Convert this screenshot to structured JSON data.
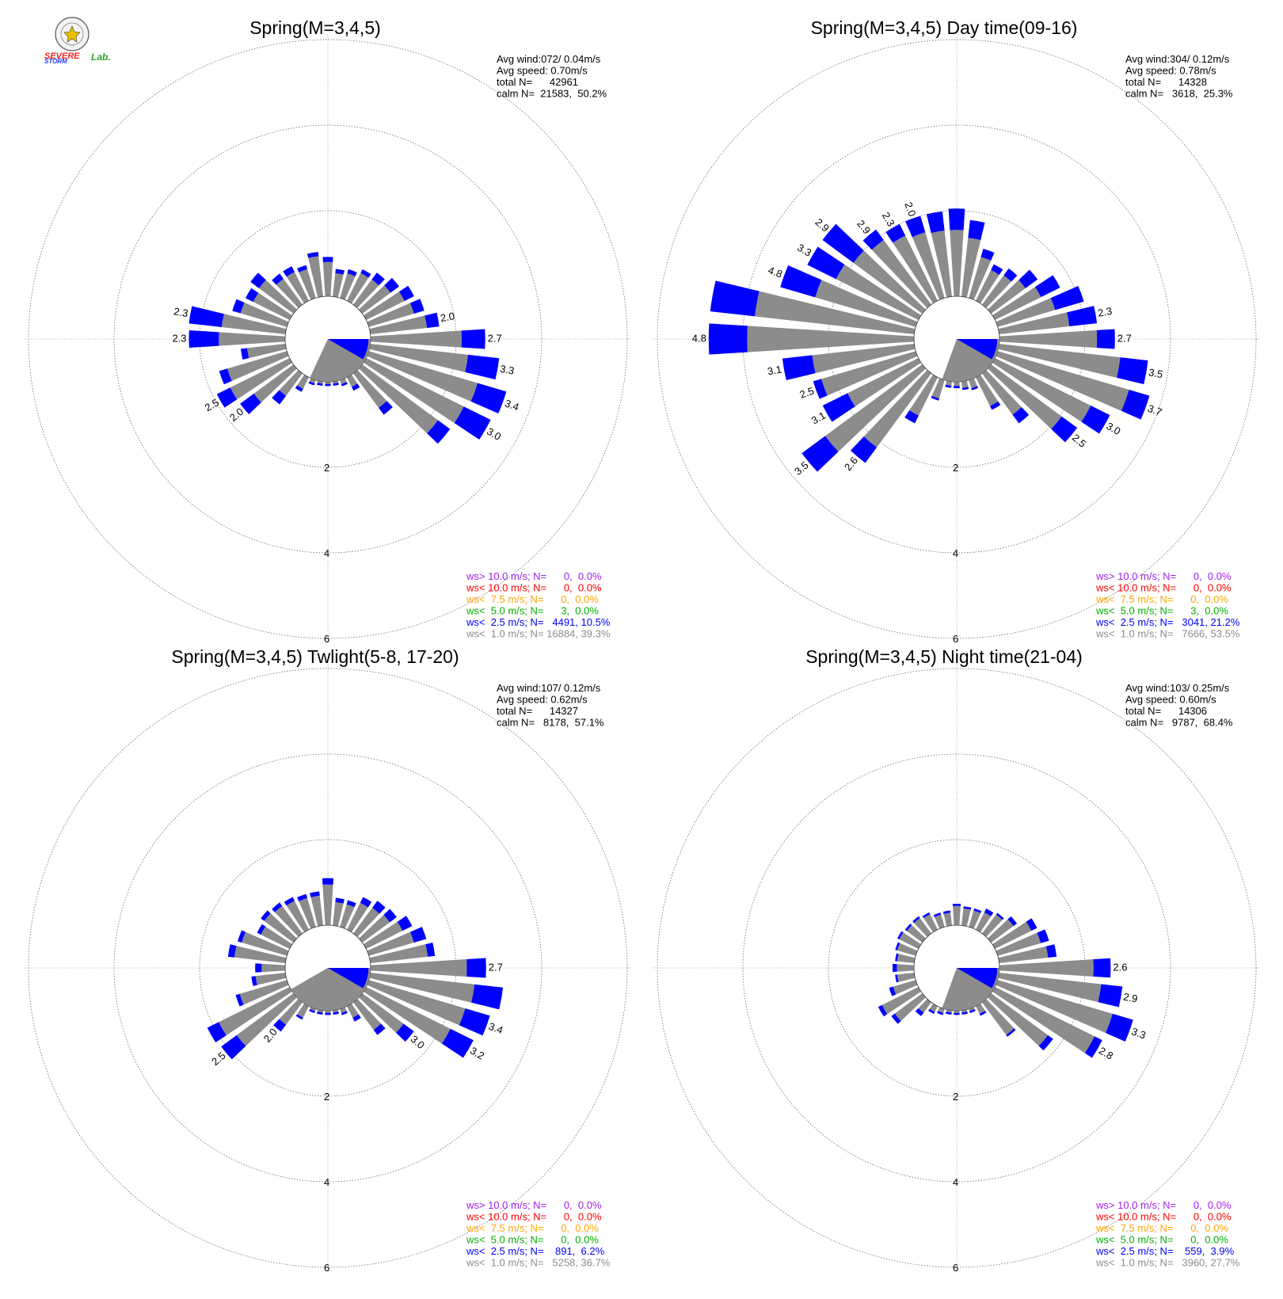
{
  "logo": {
    "line1": "SEVERE",
    "line2": "STORM",
    "line3": "Lab."
  },
  "chart_data": [
    {
      "type": "windrose",
      "title": "Spring(M=3,4,5)",
      "stats": {
        "avg_wind": "Avg wind:072/ 0.04m/s",
        "avg_speed": "Avg speed: 0.70m/s",
        "total": "total N=      42961",
        "calm": "calm N=  21583,  50.2%"
      },
      "legend": [
        {
          "text": "ws> 10.0 m/s; N=      0,  0.0%",
          "color": "#a020f0"
        },
        {
          "text": "ws< 10.0 m/s; N=      0,  0.0%",
          "color": "#ff0000"
        },
        {
          "text": "ws<  7.5 m/s; N=      0,  0.0%",
          "color": "#ffa500"
        },
        {
          "text": "ws<  5.0 m/s; N=      3,  0.0%",
          "color": "#00b000"
        },
        {
          "text": "ws<  2.5 m/s; N=   4491, 10.5%",
          "color": "#0000ff"
        },
        {
          "text": "ws<  1.0 m/s; N= 16884, 39.3%",
          "color": "#8c8c8c"
        }
      ],
      "radial_ticks": [
        "2",
        "4",
        "6"
      ],
      "calm_sector_deg": [
        90,
        205
      ],
      "directions_deg": [
        0,
        10,
        20,
        30,
        40,
        50,
        60,
        70,
        80,
        90,
        100,
        110,
        120,
        130,
        140,
        150,
        160,
        170,
        180,
        190,
        200,
        210,
        220,
        230,
        240,
        250,
        260,
        270,
        280,
        290,
        300,
        310,
        320,
        330,
        340,
        350
      ],
      "freq_ws_lt_1_0": [
        0.8,
        0.55,
        0.6,
        0.72,
        0.73,
        0.82,
        1.0,
        1.1,
        1.33,
        2.13,
        2.3,
        2.65,
        2.55,
        2.2,
        1.0,
        0.25,
        0.1,
        0.05,
        0.05,
        0.05,
        0.08,
        0.3,
        0.65,
        1.15,
        1.55,
        1.45,
        0.9,
        1.55,
        1.5,
        1.13,
        0.95,
        1.0,
        0.75,
        0.75,
        0.7,
        0.95
      ],
      "freq_ws_lt_2_5": [
        0.12,
        0.1,
        0.1,
        0.1,
        0.2,
        0.25,
        0.25,
        0.25,
        0.29,
        0.55,
        0.73,
        0.7,
        0.7,
        0.35,
        0.2,
        0.1,
        0.05,
        0.05,
        0.05,
        0.05,
        0.05,
        0.08,
        0.25,
        0.4,
        0.35,
        0.2,
        0.15,
        0.7,
        0.77,
        0.2,
        0.2,
        0.25,
        0.15,
        0.15,
        0.1,
        0.1
      ],
      "bar_labels": [
        {
          "dir": 80,
          "text": "2.0"
        },
        {
          "dir": 90,
          "text": "2.7"
        },
        {
          "dir": 100,
          "text": "3.3"
        },
        {
          "dir": 110,
          "text": "3.4"
        },
        {
          "dir": 120,
          "text": "3.0"
        },
        {
          "dir": 230,
          "text": "2.0"
        },
        {
          "dir": 240,
          "text": "2.5"
        },
        {
          "dir": 270,
          "text": "2.3"
        },
        {
          "dir": 280,
          "text": "2.3"
        }
      ]
    },
    {
      "type": "windrose",
      "title": "Spring(M=3,4,5) Day time(09-16)",
      "stats": {
        "avg_wind": "Avg wind:304/ 0.12m/s",
        "avg_speed": "Avg speed: 0.78m/s",
        "total": "total N=      14328",
        "calm": "calm N=   3618,  25.3%"
      },
      "legend": [
        {
          "text": "ws> 10.0 m/s; N=      0,  0.0%",
          "color": "#a020f0"
        },
        {
          "text": "ws< 10.0 m/s; N=      0,  0.0%",
          "color": "#ff0000"
        },
        {
          "text": "ws<  7.5 m/s; N=      0,  0.0%",
          "color": "#ffa500"
        },
        {
          "text": "ws<  5.0 m/s; N=      3,  0.0%",
          "color": "#00b000"
        },
        {
          "text": "ws<  2.5 m/s; N=   3041, 21.2%",
          "color": "#0000ff"
        },
        {
          "text": "ws<  1.0 m/s; N=   7666, 53.5%",
          "color": "#8c8c8c"
        }
      ],
      "radial_ticks": [
        "2",
        "4",
        "6"
      ],
      "calm_sector_deg": [
        90,
        200
      ],
      "directions_deg": [
        0,
        10,
        20,
        30,
        40,
        50,
        60,
        70,
        80,
        90,
        100,
        110,
        120,
        130,
        140,
        150,
        160,
        170,
        180,
        190,
        200,
        210,
        220,
        230,
        240,
        250,
        260,
        270,
        280,
        290,
        300,
        310,
        320,
        330,
        340,
        350
      ],
      "freq_ws_lt_1_0": [
        1.55,
        1.38,
        1.0,
        0.8,
        0.85,
        1.0,
        1.2,
        1.4,
        1.65,
        2.28,
        2.85,
        3.2,
        2.5,
        2.05,
        1.2,
        0.75,
        0.2,
        0.15,
        0.1,
        0.1,
        0.45,
        1.0,
        2.15,
        2.82,
        1.85,
        2.3,
        2.4,
        3.9,
        3.75,
        2.45,
        2.15,
        2.0,
        1.88,
        1.7,
        1.6,
        1.55
      ],
      "freq_ws_lt_2_5": [
        0.5,
        0.42,
        0.2,
        0.15,
        0.2,
        0.35,
        0.5,
        0.7,
        0.65,
        0.42,
        0.65,
        0.5,
        0.5,
        0.45,
        0.25,
        0.1,
        0.05,
        0.05,
        0.05,
        0.05,
        0.05,
        0.2,
        0.45,
        0.68,
        0.65,
        0.2,
        0.7,
        0.9,
        1.05,
        0.85,
        0.75,
        0.9,
        0.3,
        0.3,
        0.4,
        0.45
      ],
      "bar_labels": [
        {
          "dir": 80,
          "text": "2.3"
        },
        {
          "dir": 90,
          "text": "2.7"
        },
        {
          "dir": 100,
          "text": "3.5"
        },
        {
          "dir": 110,
          "text": "3.7"
        },
        {
          "dir": 120,
          "text": "3.0"
        },
        {
          "dir": 130,
          "text": "2.5"
        },
        {
          "dir": 220,
          "text": "2.6"
        },
        {
          "dir": 230,
          "text": "3.5"
        },
        {
          "dir": 240,
          "text": "3.1"
        },
        {
          "dir": 250,
          "text": "2.5"
        },
        {
          "dir": 260,
          "text": "3.1"
        },
        {
          "dir": 270,
          "text": "4.8"
        },
        {
          "dir": 290,
          "text": "4.8"
        },
        {
          "dir": 300,
          "text": "3.3"
        },
        {
          "dir": 310,
          "text": "2.9"
        },
        {
          "dir": 320,
          "text": "2.9"
        },
        {
          "dir": 330,
          "text": "2.3"
        },
        {
          "dir": 340,
          "text": "2.0"
        }
      ]
    },
    {
      "type": "windrose",
      "title": "Spring(M=3,4,5) Twlight(5-8, 17-20)",
      "stats": {
        "avg_wind": "Avg wind:107/ 0.12m/s",
        "avg_speed": "Avg speed: 0.62m/s",
        "total": "total N=      14327",
        "calm": "calm N=   8178,  57.1%"
      },
      "legend": [
        {
          "text": "ws> 10.0 m/s; N=      0,  0.0%",
          "color": "#a020f0"
        },
        {
          "text": "ws< 10.0 m/s; N=      0,  0.0%",
          "color": "#ff0000"
        },
        {
          "text": "ws<  7.5 m/s; N=      0,  0.0%",
          "color": "#ffa500"
        },
        {
          "text": "ws<  5.0 m/s; N=      0,  0.0%",
          "color": "#00b000"
        },
        {
          "text": "ws<  2.5 m/s; N=    891,  6.2%",
          "color": "#0000ff"
        },
        {
          "text": "ws<  1.0 m/s; N=   5258, 36.7%",
          "color": "#8c8c8c"
        }
      ],
      "radial_ticks": [
        "2",
        "4",
        "6"
      ],
      "calm_sector_deg": [
        90,
        240
      ],
      "directions_deg": [
        0,
        10,
        20,
        30,
        40,
        50,
        60,
        70,
        80,
        90,
        100,
        110,
        120,
        130,
        140,
        150,
        160,
        170,
        180,
        190,
        200,
        210,
        220,
        230,
        240,
        250,
        260,
        270,
        280,
        290,
        300,
        310,
        320,
        330,
        340,
        350
      ],
      "freq_ws_lt_1_0": [
        0.95,
        0.55,
        0.55,
        0.7,
        0.75,
        0.8,
        0.95,
        1.1,
        1.35,
        2.25,
        2.45,
        2.35,
        2.2,
        1.2,
        0.8,
        0.3,
        0.1,
        0.05,
        0.05,
        0.05,
        0.05,
        0.3,
        0.65,
        1.65,
        1.85,
        1.15,
        0.7,
        0.55,
        1.2,
        1.1,
        0.75,
        0.85,
        0.8,
        0.75,
        0.7,
        0.7
      ],
      "freq_ws_lt_2_5": [
        0.15,
        0.1,
        0.1,
        0.15,
        0.2,
        0.2,
        0.25,
        0.3,
        0.17,
        0.45,
        0.67,
        0.6,
        0.6,
        0.3,
        0.15,
        0.1,
        0.05,
        0.05,
        0.05,
        0.05,
        0.05,
        0.05,
        0.2,
        0.45,
        0.3,
        0.1,
        0.1,
        0.15,
        0.15,
        0.1,
        0.1,
        0.1,
        0.1,
        0.1,
        0.1,
        0.1
      ],
      "bar_labels": [
        {
          "dir": 90,
          "text": "2.7"
        },
        {
          "dir": 110,
          "text": "3.4"
        },
        {
          "dir": 120,
          "text": "3.2"
        },
        {
          "dir": 130,
          "text": "3.0"
        },
        {
          "dir": 220,
          "text": "2.0"
        },
        {
          "dir": 230,
          "text": "2.5"
        }
      ]
    },
    {
      "type": "windrose",
      "title": "Spring(M=3,4,5) Night time(21-04)",
      "stats": {
        "avg_wind": "Avg wind:103/ 0.25m/s",
        "avg_speed": "Avg speed: 0.60m/s",
        "total": "total N=      14306",
        "calm": "calm N=   9787,  68.4%"
      },
      "legend": [
        {
          "text": "ws> 10.0 m/s; N=      0,  0.0%",
          "color": "#a020f0"
        },
        {
          "text": "ws< 10.0 m/s; N=      0,  0.0%",
          "color": "#ff0000"
        },
        {
          "text": "ws<  7.5 m/s; N=      0,  0.0%",
          "color": "#ffa500"
        },
        {
          "text": "ws<  5.0 m/s; N=      0,  0.0%",
          "color": "#00b000"
        },
        {
          "text": "ws<  2.5 m/s; N=    559,  3.9%",
          "color": "#0000ff"
        },
        {
          "text": "ws<  1.0 m/s; N=   3960, 27.7%",
          "color": "#8c8c8c"
        }
      ],
      "radial_ticks": [
        "2",
        "4",
        "6"
      ],
      "calm_sector_deg": [
        90,
        200
      ],
      "directions_deg": [
        0,
        10,
        20,
        30,
        40,
        50,
        60,
        70,
        80,
        90,
        100,
        110,
        120,
        130,
        140,
        150,
        160,
        170,
        180,
        190,
        200,
        210,
        220,
        230,
        240,
        250,
        260,
        270,
        280,
        290,
        300,
        310,
        320,
        330,
        340,
        350
      ],
      "freq_ws_lt_1_0": [
        0.45,
        0.4,
        0.4,
        0.45,
        0.55,
        0.65,
        0.95,
        1.05,
        1.15,
        2.2,
        2.4,
        2.8,
        2.6,
        1.65,
        0.95,
        0.2,
        0.05,
        0.05,
        0.05,
        0.05,
        0.1,
        0.15,
        0.3,
        0.8,
        0.95,
        0.55,
        0.4,
        0.4,
        0.4,
        0.45,
        0.5,
        0.45,
        0.45,
        0.4,
        0.3,
        0.3
      ],
      "freq_ws_lt_2_5": [
        0.05,
        0.05,
        0.05,
        0.1,
        0.05,
        0.1,
        0.15,
        0.2,
        0.2,
        0.4,
        0.5,
        0.5,
        0.2,
        0.15,
        0.05,
        0.05,
        0.05,
        0.05,
        0.05,
        0.05,
        0.05,
        0.05,
        0.1,
        0.1,
        0.1,
        0.1,
        0.05,
        0.1,
        0.05,
        0.05,
        0.05,
        0.05,
        0.05,
        0.05,
        0.05,
        0.05
      ],
      "bar_labels": [
        {
          "dir": 90,
          "text": "2.6"
        },
        {
          "dir": 100,
          "text": "2.9"
        },
        {
          "dir": 110,
          "text": "3.3"
        },
        {
          "dir": 120,
          "text": "2.8"
        }
      ]
    }
  ]
}
